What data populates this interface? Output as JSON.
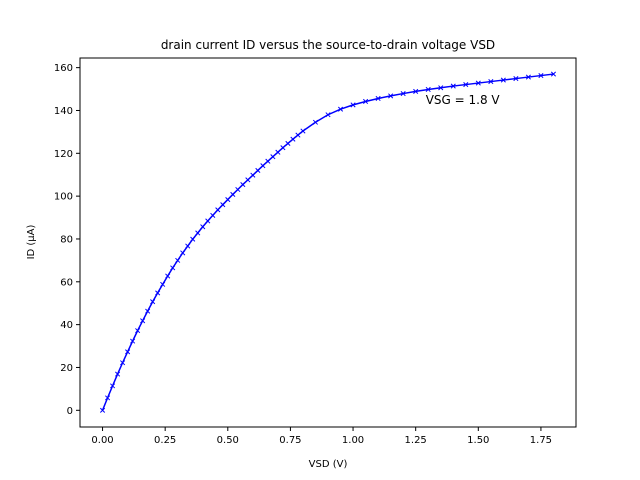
{
  "chart_data": {
    "type": "line",
    "title": "drain current ID versus the source-to-drain voltage VSD",
    "xlabel": "VSD (V)",
    "ylabel": "ID (µA)",
    "xlim": [
      -0.09,
      1.89
    ],
    "ylim": [
      -7.8,
      164.5
    ],
    "xticks": [
      0.0,
      0.25,
      0.5,
      0.75,
      1.0,
      1.25,
      1.5,
      1.75
    ],
    "xtick_labels": [
      "0.00",
      "0.25",
      "0.50",
      "0.75",
      "1.00",
      "1.25",
      "1.50",
      "1.75"
    ],
    "yticks": [
      0,
      20,
      40,
      60,
      80,
      100,
      120,
      140,
      160
    ],
    "ytick_labels": [
      "0",
      "20",
      "40",
      "60",
      "80",
      "100",
      "120",
      "140",
      "160"
    ],
    "grid": false,
    "annotation": {
      "text": "VSG = 1.8 V",
      "x": 1.29,
      "y": 143
    },
    "series": [
      {
        "color": "#0000ff",
        "marker": "x",
        "x": [
          0.0,
          0.02,
          0.04,
          0.06,
          0.08,
          0.1,
          0.12,
          0.14,
          0.16,
          0.18,
          0.2,
          0.22,
          0.24,
          0.26,
          0.28,
          0.3,
          0.32,
          0.34,
          0.36,
          0.38,
          0.4,
          0.42,
          0.44,
          0.46,
          0.48,
          0.5,
          0.52,
          0.54,
          0.56,
          0.58,
          0.6,
          0.62,
          0.64,
          0.66,
          0.68,
          0.7,
          0.72,
          0.74,
          0.76,
          0.78,
          0.8,
          0.85,
          0.9,
          0.95,
          1.0,
          1.05,
          1.1,
          1.15,
          1.2,
          1.25,
          1.3,
          1.35,
          1.4,
          1.45,
          1.5,
          1.55,
          1.6,
          1.65,
          1.7,
          1.75,
          1.8
        ],
        "y": [
          0.0,
          5.8,
          11.4,
          16.9,
          22.2,
          27.3,
          32.3,
          37.2,
          41.8,
          46.3,
          50.7,
          54.8,
          58.8,
          62.7,
          66.5,
          70.0,
          73.5,
          76.7,
          79.9,
          82.8,
          85.7,
          88.4,
          91.0,
          93.6,
          96.0,
          98.4,
          100.8,
          103.1,
          105.4,
          107.6,
          109.8,
          112.0,
          114.2,
          116.3,
          118.4,
          120.5,
          122.6,
          124.6,
          126.6,
          128.5,
          130.4,
          134.5,
          138.0,
          140.6,
          142.6,
          144.2,
          145.6,
          146.8,
          147.9,
          148.9,
          149.8,
          150.6,
          151.4,
          152.1,
          152.8,
          153.5,
          154.2,
          154.9,
          155.6,
          156.3,
          157.0
        ]
      }
    ]
  }
}
